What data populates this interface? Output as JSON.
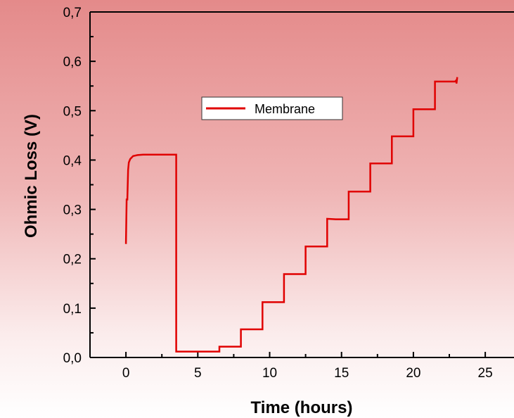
{
  "chart_data": {
    "type": "line",
    "title": "",
    "xlabel": "Time (hours)",
    "ylabel": "Ohmic Loss (V)",
    "xlim": [
      -2.5,
      27
    ],
    "ylim": [
      0,
      0.7
    ],
    "x_ticks": [
      0,
      5,
      10,
      15,
      20,
      25
    ],
    "x_tick_labels": [
      "0",
      "5",
      "10",
      "15",
      "20",
      "25"
    ],
    "y_ticks": [
      0,
      0.1,
      0.2,
      0.3,
      0.4,
      0.5,
      0.6,
      0.7
    ],
    "y_tick_labels": [
      "0,0",
      "0,1",
      "0,2",
      "0,3",
      "0,4",
      "0,5",
      "0,6",
      "0,7"
    ],
    "grid": false,
    "legend_position": "top-center",
    "series": [
      {
        "name": "Membrane",
        "color": "#e00000",
        "x": [
          0,
          0.05,
          0.1,
          0.15,
          0.2,
          0.3,
          0.5,
          0.8,
          1.2,
          2,
          3,
          3.5,
          3.5,
          5,
          6.5,
          6.5,
          8,
          8,
          9.5,
          9.5,
          11,
          11,
          12.5,
          12.5,
          14,
          14,
          14.6,
          15.5,
          15.5,
          17,
          17,
          18.5,
          18.5,
          20,
          20,
          21.5,
          21.5,
          22.9,
          23,
          23,
          23.05
        ],
        "y": [
          0.23,
          0.32,
          0.32,
          0.38,
          0.395,
          0.402,
          0.408,
          0.41,
          0.411,
          0.411,
          0.411,
          0.411,
          0.012,
          0.012,
          0.012,
          0.022,
          0.022,
          0.057,
          0.057,
          0.112,
          0.112,
          0.169,
          0.169,
          0.225,
          0.225,
          0.281,
          0.28,
          0.28,
          0.336,
          0.336,
          0.393,
          0.393,
          0.448,
          0.448,
          0.503,
          0.503,
          0.559,
          0.559,
          0.562,
          0.555,
          0.568
        ]
      }
    ]
  }
}
